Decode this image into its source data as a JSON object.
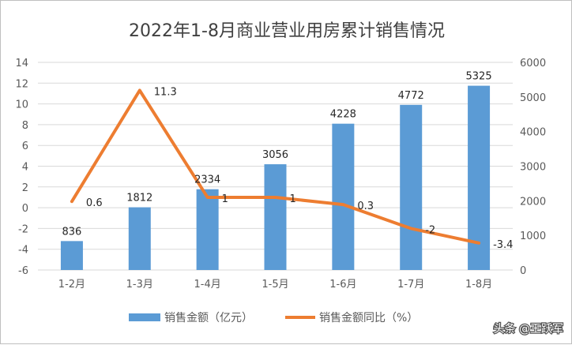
{
  "chart_data": {
    "type": "bar",
    "title": "2022年1-8月商业营业用房累计销售情况",
    "categories": [
      "1-2月",
      "1-3月",
      "1-4月",
      "1-5月",
      "1-6月",
      "1-7月",
      "1-8月"
    ],
    "series": [
      {
        "name": "销售金额（亿元）",
        "type": "bar",
        "axis": "right",
        "values": [
          836,
          1812,
          2334,
          3056,
          4228,
          4772,
          5325
        ],
        "labels": [
          "836",
          "1812",
          "2334",
          "3056",
          "4228",
          "4772",
          "5325"
        ],
        "color": "#5b9bd5"
      },
      {
        "name": "销售金额同比（%）",
        "type": "line",
        "axis": "left",
        "values": [
          0.6,
          11.3,
          1,
          1,
          0.3,
          -2,
          -3.4
        ],
        "labels": [
          "0.6",
          "11.3",
          "1",
          "1",
          "0.3",
          "-2",
          "-3.4"
        ],
        "color": "#ed7d31"
      }
    ],
    "y_left": {
      "ylim": [
        -6,
        14
      ],
      "ticks": [
        "-6",
        "-4",
        "-2",
        "0",
        "2",
        "4",
        "6",
        "8",
        "10",
        "12",
        "14"
      ]
    },
    "y_right": {
      "ylim": [
        0,
        6000
      ],
      "ticks": [
        "0",
        "1000",
        "2000",
        "3000",
        "4000",
        "5000",
        "6000"
      ]
    },
    "grid": true,
    "legend_position": "bottom"
  },
  "watermark": "头条 @王跃军"
}
